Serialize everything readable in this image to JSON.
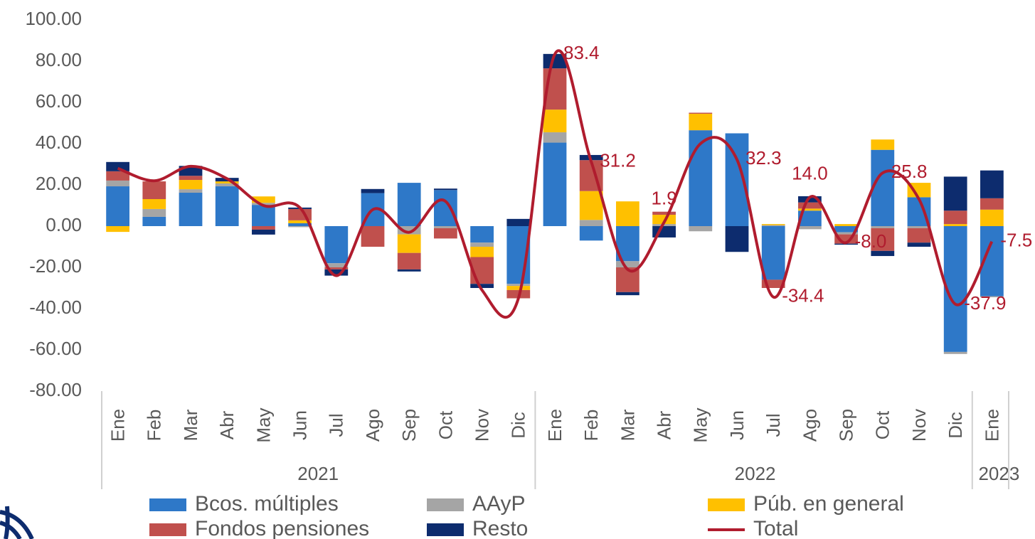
{
  "chart_data": {
    "type": "bar",
    "categories": [
      "Ene",
      "Feb",
      "Mar",
      "Abr",
      "May",
      "Jun",
      "Jul",
      "Ago",
      "Sep",
      "Oct",
      "Nov",
      "Dic",
      "Ene",
      "Feb",
      "Mar",
      "Abr",
      "May",
      "Jun",
      "Jul",
      "Ago",
      "Sep",
      "Oct",
      "Nov",
      "Dic",
      "Ene"
    ],
    "year_groups": [
      {
        "name": "2021",
        "count": 12
      },
      {
        "name": "2022",
        "count": 12
      },
      {
        "name": "2023",
        "count": 1
      }
    ],
    "series": [
      {
        "name": "Bcos. múltiples",
        "color": "#2e78c8",
        "values": [
          19.3,
          4.5,
          16.2,
          19.3,
          10.3,
          1.4,
          -18,
          16,
          21,
          17.5,
          -8,
          -28,
          40.5,
          -7,
          -17,
          0,
          46.5,
          45,
          -26,
          7.5,
          -3,
          37,
          14,
          -61,
          -34
        ]
      },
      {
        "name": "AAyP",
        "color": "#a5a5a5",
        "values": [
          2.8,
          3.8,
          1.7,
          1.4,
          1,
          -0.5,
          -2,
          0,
          -4,
          -1,
          -2,
          -1,
          5,
          3,
          -3,
          1,
          -2.5,
          0,
          0.5,
          -1.5,
          -1,
          -1,
          -1,
          -1,
          -0.5
        ]
      },
      {
        "name": "Púb. en general",
        "color": "#ffc000",
        "values": [
          -2.8,
          4.8,
          4.5,
          1,
          3.1,
          1.4,
          0,
          0,
          -9,
          0,
          -5,
          -2,
          11,
          14,
          12,
          4.5,
          8,
          0,
          0.5,
          1,
          1,
          5,
          7,
          1,
          8
        ]
      },
      {
        "name": "Fondos pensiones",
        "color": "#c0504d",
        "values": [
          4.5,
          8.6,
          2,
          0,
          -1.7,
          5.5,
          -1,
          -10,
          -8,
          -5,
          -13,
          -4,
          20,
          15,
          -12,
          1.5,
          0.5,
          0,
          -4,
          3,
          -4.5,
          -11,
          -7,
          6.5,
          5.5
        ]
      },
      {
        "name": "Resto",
        "color": "#0d2c6e",
        "values": [
          4.5,
          0,
          4.8,
          1.7,
          -2.4,
          0.7,
          -3,
          2,
          -1,
          0.7,
          -2,
          3.5,
          7,
          2.5,
          -1.5,
          -5.5,
          0,
          -12.5,
          0,
          3,
          -0.5,
          -2.5,
          -2,
          16.5,
          13.5
        ]
      },
      {
        "name": "Total",
        "type": "line",
        "color": "#b01c2e",
        "values": [
          28,
          22,
          29,
          23,
          10,
          9,
          -24,
          8,
          -3,
          12,
          -31,
          -35,
          83.4,
          31.2,
          -21,
          1.9,
          40,
          32.3,
          -34.4,
          14,
          -8,
          25.8,
          13,
          -37.9,
          -7.5
        ],
        "value_labels": [
          null,
          null,
          null,
          null,
          null,
          null,
          null,
          null,
          null,
          null,
          null,
          null,
          "83.4",
          "31.2",
          null,
          "1.9",
          null,
          "32.3",
          "-34.4",
          "14.0",
          "-8.0",
          "25.8",
          null,
          "-37.9",
          "-7.5"
        ]
      }
    ],
    "ylim": [
      -80,
      100
    ],
    "yticks": [
      {
        "value": 100,
        "label": "100.00"
      },
      {
        "value": 80,
        "label": "80.00"
      },
      {
        "value": 60,
        "label": "60.00"
      },
      {
        "value": 40,
        "label": "40.00"
      },
      {
        "value": 20,
        "label": "20.00"
      },
      {
        "value": 0,
        "label": "0.00"
      },
      {
        "value": -20,
        "label": "-20.00"
      },
      {
        "value": -40,
        "label": "-40.00"
      },
      {
        "value": -60,
        "label": "-60.00"
      },
      {
        "value": -80,
        "label": "-80.00"
      }
    ]
  }
}
